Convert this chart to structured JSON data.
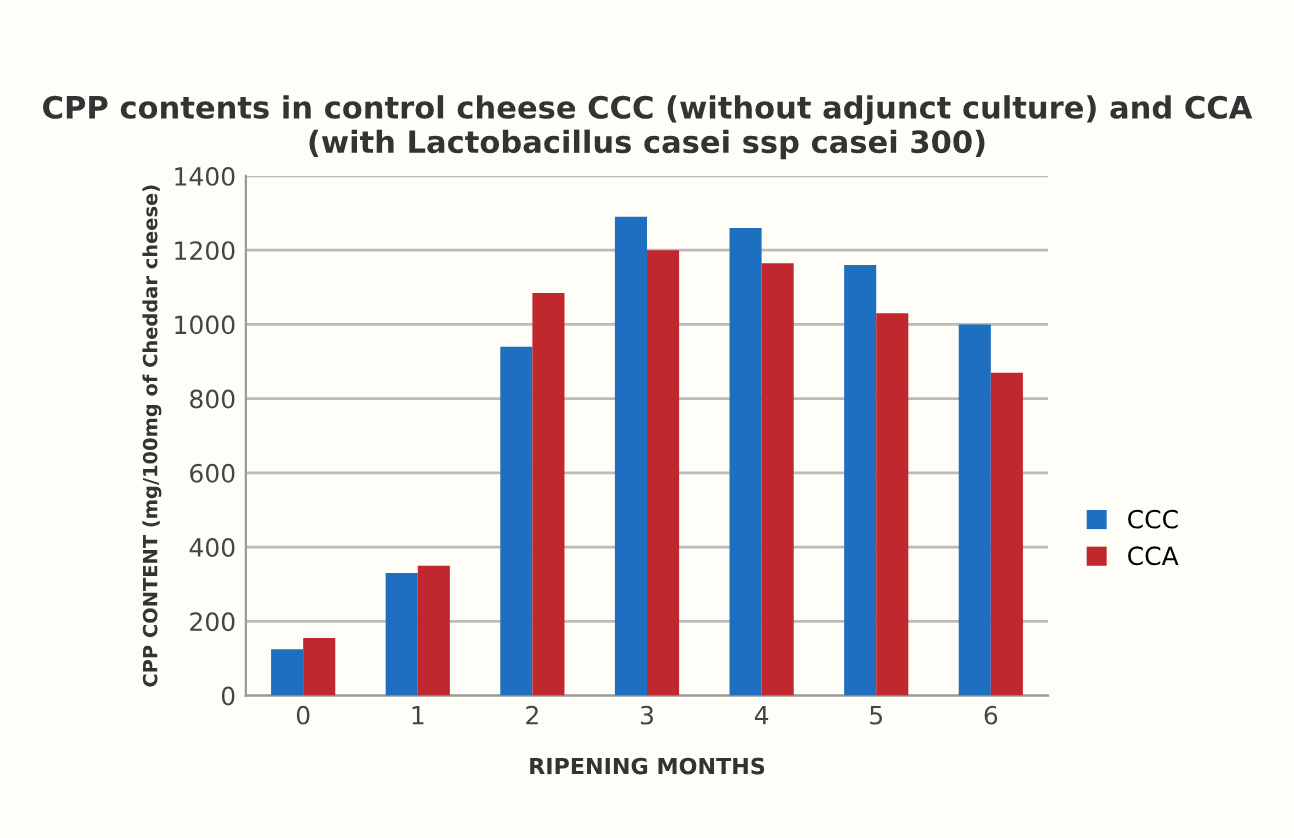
{
  "chart_data": {
    "type": "bar",
    "title": "CPP contents in control cheese CCC (without adjunct culture) and CCA (with Lactobacillus casei ssp casei 300)",
    "xlabel": "RIPENING MONTHS",
    "ylabel": "CPP CONTENT (mg/100mg of Cheddar cheese)",
    "categories": [
      "0",
      "1",
      "2",
      "3",
      "4",
      "5",
      "6"
    ],
    "series": [
      {
        "name": "CCC",
        "color": "#1f6fc0",
        "values": [
          125,
          330,
          940,
          1290,
          1260,
          1160,
          1000
        ]
      },
      {
        "name": "CCA",
        "color": "#c0282d",
        "values": [
          155,
          350,
          1085,
          1200,
          1165,
          1030,
          870
        ]
      }
    ],
    "ylim": [
      0,
      1400
    ],
    "yticks": [
      0,
      200,
      400,
      600,
      800,
      1000,
      1200,
      1400
    ],
    "grid": "y",
    "legend": "right"
  }
}
